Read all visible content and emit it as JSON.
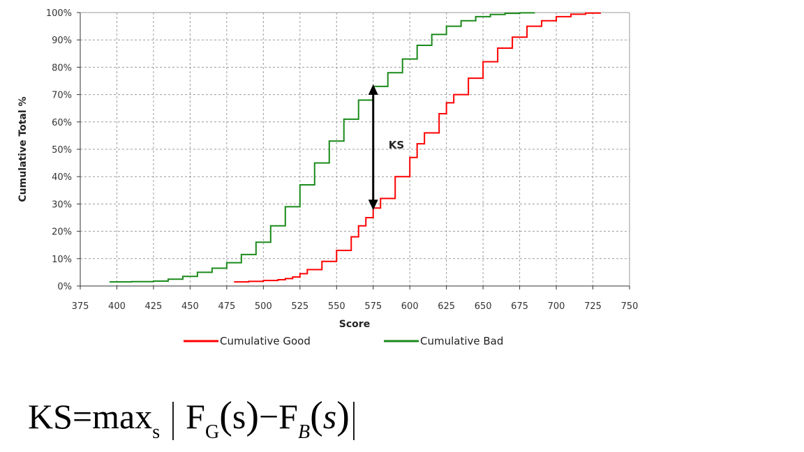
{
  "chart_data": {
    "type": "line",
    "xlabel": "Score",
    "ylabel": "Cumulative Total %",
    "xlim": [
      375,
      750
    ],
    "ylim": [
      0,
      100
    ],
    "x_ticks": [
      "375",
      "400",
      "425",
      "450",
      "475",
      "500",
      "525",
      "550",
      "575",
      "600",
      "625",
      "650",
      "675",
      "700",
      "725",
      "750"
    ],
    "y_ticks": [
      "0%",
      "10%",
      "20%",
      "30%",
      "40%",
      "50%",
      "60%",
      "70%",
      "80%",
      "90%",
      "100%"
    ],
    "grid": true,
    "legend_position": "bottom",
    "series": [
      {
        "name": "Cumulative Good",
        "color": "#ff0000",
        "x": [
          480,
          490,
          500,
          510,
          515,
          520,
          525,
          530,
          540,
          550,
          560,
          565,
          570,
          575,
          580,
          590,
          600,
          605,
          610,
          620,
          625,
          630,
          640,
          650,
          660,
          670,
          680,
          690,
          700,
          710,
          720,
          730
        ],
        "y": [
          1.5,
          1.7,
          2,
          2.3,
          2.7,
          3.3,
          4.5,
          6,
          9,
          13,
          18,
          22,
          25,
          28.5,
          32,
          40,
          47,
          52,
          56,
          63,
          67,
          70,
          76,
          82,
          87,
          91,
          95,
          97,
          98.5,
          99.4,
          99.8,
          100
        ]
      },
      {
        "name": "Cumulative Bad",
        "color": "#1a8a1a",
        "x": [
          395,
          410,
          425,
          435,
          445,
          455,
          465,
          475,
          485,
          495,
          505,
          515,
          525,
          535,
          545,
          555,
          565,
          575,
          585,
          595,
          605,
          615,
          625,
          635,
          645,
          655,
          665,
          675,
          685
        ],
        "y": [
          1.5,
          1.6,
          1.8,
          2.5,
          3.5,
          5,
          6.5,
          8.5,
          11.5,
          16,
          22,
          29,
          37,
          45,
          53,
          61,
          68,
          73,
          78,
          83,
          88,
          92,
          95,
          97,
          98.5,
          99.3,
          99.7,
          99.9,
          100
        ]
      }
    ],
    "annotations": [
      {
        "text": "KS",
        "x": 575,
        "y_from": 73,
        "y_to": 28.5
      }
    ]
  },
  "formula": {
    "lhs": "KS",
    "eq": "=",
    "op": "max",
    "op_sub": "s",
    "bar": "|",
    "fg": "F",
    "fg_sub": "G",
    "lparen": "(",
    "arg1": "s",
    "rparen": ")",
    "minus": "−",
    "fb": "F",
    "fb_sub": "B",
    "arg2": "s"
  }
}
